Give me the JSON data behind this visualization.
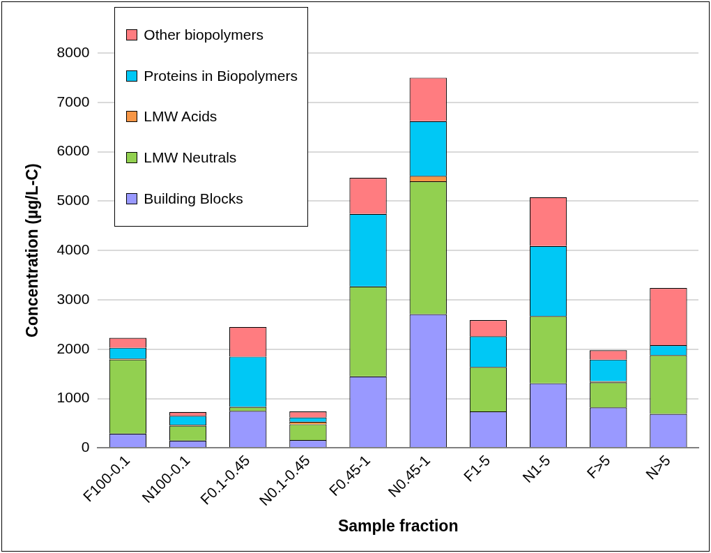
{
  "chart_data": {
    "type": "bar",
    "stacked": true,
    "xlabel": "Sample fraction",
    "ylabel": "Concentration (µg/L-C)",
    "categories": [
      "F100-0.1",
      "N100-0.1",
      "F0.1-0.45",
      "N0.1-0.45",
      "F0.45-1",
      "N0.45-1",
      "F1-5",
      "N1-5",
      "F>5",
      "N>5"
    ],
    "series": [
      {
        "name": "Building Blocks",
        "color": "#9999ff",
        "values": [
          290,
          150,
          750,
          160,
          1450,
          2710,
          740,
          1310,
          820,
          690
        ]
      },
      {
        "name": "LMW Neutrals",
        "color": "#92d050",
        "values": [
          1500,
          300,
          80,
          320,
          1820,
          2690,
          900,
          1360,
          510,
          1190
        ]
      },
      {
        "name": "LMW Acids",
        "color": "#f79646",
        "values": [
          20,
          20,
          10,
          50,
          null,
          110,
          null,
          null,
          20,
          null
        ]
      },
      {
        "name": "Proteins in Biopolymers",
        "color": "#00c8f5",
        "values": [
          220,
          180,
          1010,
          90,
          1470,
          1110,
          620,
          1420,
          440,
          200
        ]
      },
      {
        "name": "Other biopolymers",
        "color": "#ff7c80",
        "values": [
          200,
          80,
          600,
          120,
          730,
          880,
          330,
          990,
          190,
          1160
        ]
      }
    ],
    "ylim": [
      0,
      8000
    ],
    "yticks": [
      0,
      1000,
      2000,
      3000,
      4000,
      5000,
      6000,
      7000,
      8000
    ],
    "grid": "y",
    "legend": "top left"
  }
}
